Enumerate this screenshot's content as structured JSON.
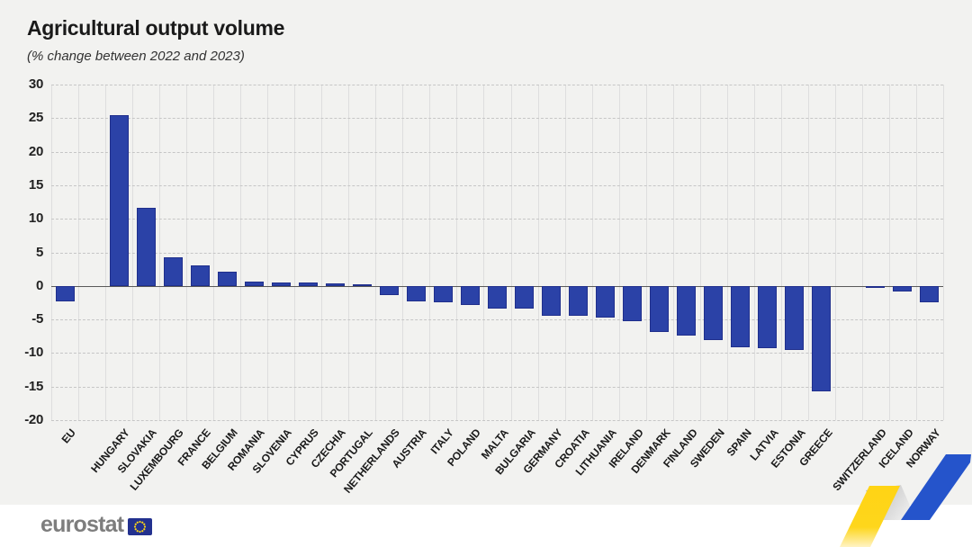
{
  "header": {
    "title": "Agricultural output volume",
    "subtitle": "(% change between 2022 and 2023)"
  },
  "chart_data": {
    "type": "bar",
    "title": "Agricultural output volume",
    "subtitle": "(% change between 2022 and 2023)",
    "xlabel": "",
    "ylabel": "% change",
    "ylim": [
      -20,
      30
    ],
    "yticks": [
      30,
      25,
      20,
      15,
      10,
      5,
      0,
      -5,
      -10,
      -15,
      -20
    ],
    "grid": "horizontal-dashed, vertical-solid",
    "legend": "none",
    "bar_color": "#2b42a7",
    "categories": [
      "EU",
      "HUNGARY",
      "SLOVAKIA",
      "LUXEMBOURG",
      "FRANCE",
      "BELGIUM",
      "ROMANIA",
      "SLOVENIA",
      "CYPRUS",
      "CZECHIA",
      "PORTUGAL",
      "NETHERLANDS",
      "AUSTRIA",
      "ITALY",
      "POLAND",
      "MALTA",
      "BULGARIA",
      "GERMANY",
      "CROATIA",
      "LITHUANIA",
      "IRELAND",
      "DENMARK",
      "FINLAND",
      "SWEDEN",
      "SPAIN",
      "LATVIA",
      "ESTONIA",
      "GREECE",
      "SWITZERLAND",
      "ICELAND",
      "NORWAY"
    ],
    "values": [
      -2.3,
      25.4,
      11.6,
      4.2,
      3.0,
      2.1,
      0.6,
      0.5,
      0.5,
      0.4,
      0.1,
      -1.4,
      -2.3,
      -2.4,
      -2.9,
      -3.4,
      -3.4,
      -4.4,
      -4.5,
      -4.7,
      -5.2,
      -6.9,
      -7.4,
      -8.1,
      -9.1,
      -9.3,
      -9.5,
      -15.7,
      -0.3,
      -0.8,
      -2.5
    ],
    "spacer_after": [
      "EU",
      "GREECE"
    ]
  },
  "footer": {
    "logo_text": "eurostat",
    "flag_icon": "eu-flag-icon"
  },
  "decoration": {
    "name": "eurostat-ribbon",
    "colors": {
      "yellow": "#ffd415",
      "gray": "#c2c2c2",
      "blue": "#2554cb"
    }
  }
}
